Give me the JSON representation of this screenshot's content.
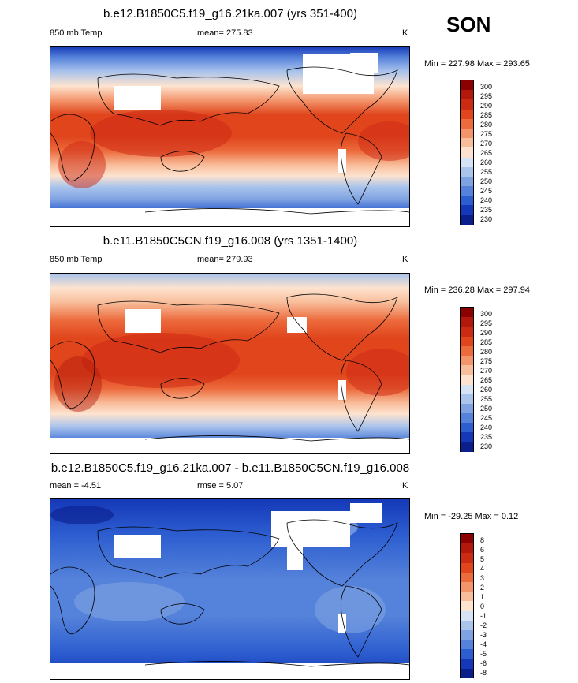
{
  "season": "SON",
  "panels": [
    {
      "title": "b.e12.B1850C5.f19_g16.21ka.007 (yrs 351-400)",
      "left_label": "850 mb Temp",
      "stat_label": "mean= 275.83",
      "units": "K",
      "minmax": "Min = 227.98 Max = 293.65",
      "levels": [
        "300",
        "295",
        "290",
        "285",
        "280",
        "275",
        "270",
        "265",
        "260",
        "255",
        "250",
        "245",
        "240",
        "235",
        "230"
      ],
      "colors": [
        "#8b0000",
        "#b2180c",
        "#cd2a14",
        "#e0451c",
        "#ec6a3c",
        "#f3946b",
        "#f8bd9a",
        "#fde3cf",
        "#d5e3f5",
        "#aac4ec",
        "#7fa3e2",
        "#5582da",
        "#2d5ed0",
        "#1538b8",
        "#0a1e8c"
      ]
    },
    {
      "title": "b.e11.B1850C5CN.f19_g16.008 (yrs 1351-1400)",
      "left_label": "850 mb Temp",
      "stat_label": "mean= 279.93",
      "units": "K",
      "minmax": "Min = 236.28 Max = 297.94",
      "levels": [
        "300",
        "295",
        "290",
        "285",
        "280",
        "275",
        "270",
        "265",
        "260",
        "255",
        "250",
        "245",
        "240",
        "235",
        "230"
      ],
      "colors": [
        "#8b0000",
        "#b2180c",
        "#cd2a14",
        "#e0451c",
        "#ec6a3c",
        "#f3946b",
        "#f8bd9a",
        "#fde3cf",
        "#d5e3f5",
        "#aac4ec",
        "#7fa3e2",
        "#5582da",
        "#2d5ed0",
        "#1538b8",
        "#0a1e8c"
      ]
    },
    {
      "title": "b.e12.B1850C5.f19_g16.21ka.007 - b.e11.B1850C5CN.f19_g16.008",
      "left_label": "mean =  -4.51",
      "stat_label": "rmse =   5.07",
      "units": "K",
      "minmax": "Min = -29.25 Max =   0.12",
      "levels": [
        "8",
        "6",
        "5",
        "4",
        "3",
        "2",
        "1",
        "0",
        "-1",
        "-2",
        "-3",
        "-4",
        "-5",
        "-6",
        "-8"
      ],
      "colors": [
        "#8b0000",
        "#b2180c",
        "#cd2a14",
        "#e0451c",
        "#ec6a3c",
        "#f3946b",
        "#f8bd9a",
        "#fde3cf",
        "#d5e3f5",
        "#aac4ec",
        "#7fa3e2",
        "#5582da",
        "#2d5ed0",
        "#1538b8",
        "#0a1e8c"
      ]
    }
  ],
  "chart_data": [
    {
      "type": "heatmap",
      "title": "b.e12.B1850C5.f19_g16.21ka.007 (yrs 351-400)",
      "field": "850 mb Temp",
      "units": "K",
      "mean": 275.83,
      "min": 227.98,
      "max": 293.65,
      "contour_levels": [
        230,
        235,
        240,
        245,
        250,
        255,
        260,
        265,
        270,
        275,
        280,
        285,
        290,
        295,
        300
      ]
    },
    {
      "type": "heatmap",
      "title": "b.e11.B1850C5CN.f19_g16.008 (yrs 1351-1400)",
      "field": "850 mb Temp",
      "units": "K",
      "mean": 279.93,
      "min": 236.28,
      "max": 297.94,
      "contour_levels": [
        230,
        235,
        240,
        245,
        250,
        255,
        260,
        265,
        270,
        275,
        280,
        285,
        290,
        295,
        300
      ]
    },
    {
      "type": "heatmap",
      "title": "b.e12.B1850C5.f19_g16.21ka.007 - b.e11.B1850C5CN.f19_g16.008",
      "units": "K",
      "mean": -4.51,
      "rmse": 5.07,
      "min": -29.25,
      "max": 0.12,
      "contour_levels": [
        -8,
        -6,
        -5,
        -4,
        -3,
        -2,
        -1,
        0,
        1,
        2,
        3,
        4,
        5,
        6,
        8
      ]
    }
  ]
}
